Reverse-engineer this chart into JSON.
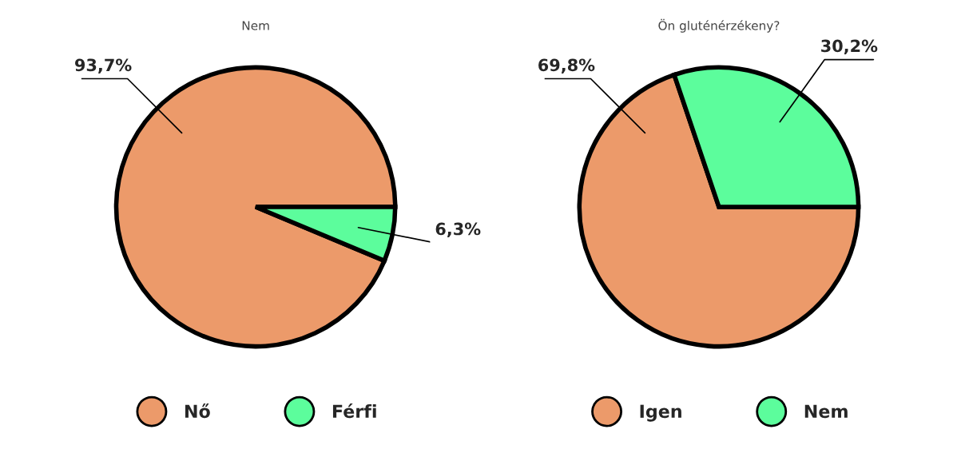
{
  "chart_data": [
    {
      "type": "pie",
      "title": "Nem",
      "categories": [
        "Nő",
        "Férfi"
      ],
      "values": [
        93.7,
        6.3
      ],
      "colors": [
        "#ec9a6a",
        "#5cfd9c"
      ],
      "value_labels": [
        "93,7%",
        "6,3%"
      ],
      "legend": "bottom"
    },
    {
      "type": "pie",
      "title": "Ön gluténérzékeny?",
      "categories": [
        "Igen",
        "Nem"
      ],
      "values": [
        69.8,
        30.2
      ],
      "colors": [
        "#ec9a6a",
        "#5cfd9c"
      ],
      "value_labels": [
        "69,8%",
        "30,2%"
      ],
      "legend": "bottom"
    }
  ]
}
